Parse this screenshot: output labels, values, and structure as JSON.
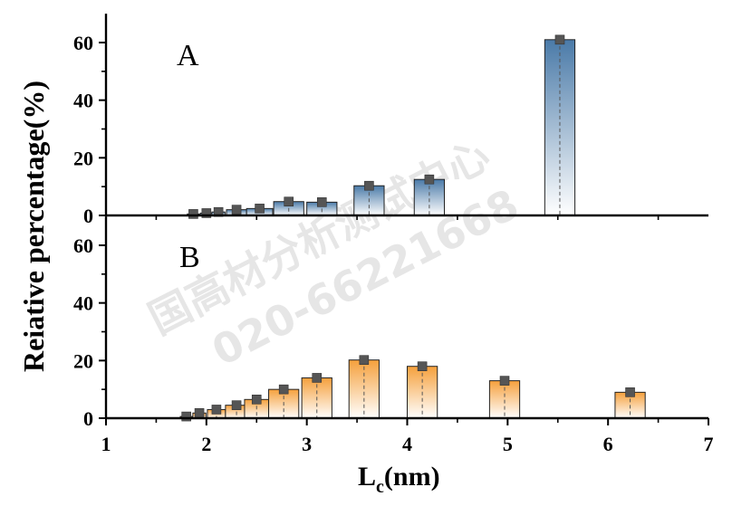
{
  "colors": {
    "panelA_top": "#4a7aa8",
    "panelA_bottom": "#ffffff",
    "panelB_top": "#f5a03c",
    "panelB_bottom": "#ffffff",
    "marker": "#555555",
    "watermark": "#c8c8c8"
  },
  "watermark": {
    "line1": "国高材分析测试中心",
    "line2": "020-66221668"
  },
  "chart_data": [
    {
      "type": "bar",
      "panel_label": "A",
      "xlim": [
        1,
        7
      ],
      "ylim": [
        0,
        70
      ],
      "yticks": [
        0,
        20,
        40,
        60
      ],
      "x": [
        1.87,
        2.0,
        2.12,
        2.3,
        2.53,
        2.82,
        3.15,
        3.62,
        4.22,
        5.52
      ],
      "widths": [
        0.12,
        0.12,
        0.13,
        0.2,
        0.26,
        0.3,
        0.3,
        0.3,
        0.3,
        0.3
      ],
      "values": [
        0.5,
        0.8,
        1.2,
        2.0,
        2.4,
        4.8,
        4.6,
        10.3,
        12.5,
        61.0
      ]
    },
    {
      "type": "bar",
      "panel_label": "B",
      "xlim": [
        1,
        7
      ],
      "ylim": [
        0,
        70
      ],
      "yticks": [
        0,
        20,
        40,
        60
      ],
      "x": [
        1.8,
        1.93,
        2.1,
        2.3,
        2.5,
        2.77,
        3.1,
        3.57,
        4.15,
        4.97,
        6.22
      ],
      "widths": [
        0.12,
        0.13,
        0.18,
        0.22,
        0.24,
        0.3,
        0.3,
        0.3,
        0.3,
        0.3,
        0.3
      ],
      "values": [
        0.6,
        1.8,
        3.0,
        4.5,
        6.5,
        10.0,
        14.0,
        20.2,
        18.0,
        13.0,
        9.0
      ]
    }
  ],
  "axes": {
    "xticks": [
      "1",
      "2",
      "3",
      "4",
      "5",
      "6",
      "7"
    ],
    "ylabel": "Reiative percentage(%)",
    "xlabel_main": "L",
    "xlabel_sub": "c",
    "xlabel_unit": "(nm)"
  }
}
